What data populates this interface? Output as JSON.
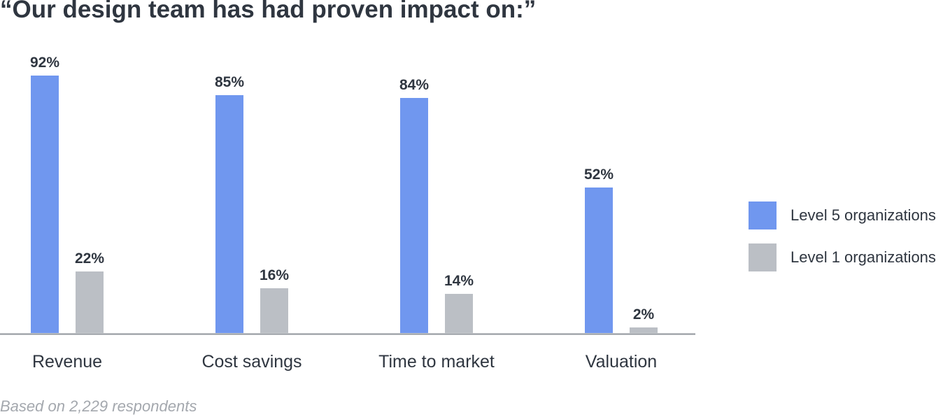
{
  "chart_data": {
    "type": "bar",
    "title": "“Our design team has had proven impact on:”",
    "xlabel": "",
    "ylabel": "",
    "categories": [
      "Revenue",
      "Cost savings",
      "Time to market",
      "Valuation"
    ],
    "series": [
      {
        "name": "Level 5 organizations",
        "values": [
          92,
          85,
          84,
          52
        ],
        "labels": [
          "92%",
          "85%",
          "84%",
          "52%"
        ],
        "color": "#7097ef"
      },
      {
        "name": "Level 1 organizations",
        "values": [
          22,
          16,
          14,
          2
        ],
        "labels": [
          "22%",
          "16%",
          "14%",
          "2%"
        ],
        "color": "#bbbfc5"
      }
    ],
    "value_unit": "%",
    "ylim": [
      0,
      100
    ],
    "grid": false,
    "legend_position": "right",
    "footnote": "Based on 2,229 respondents"
  }
}
